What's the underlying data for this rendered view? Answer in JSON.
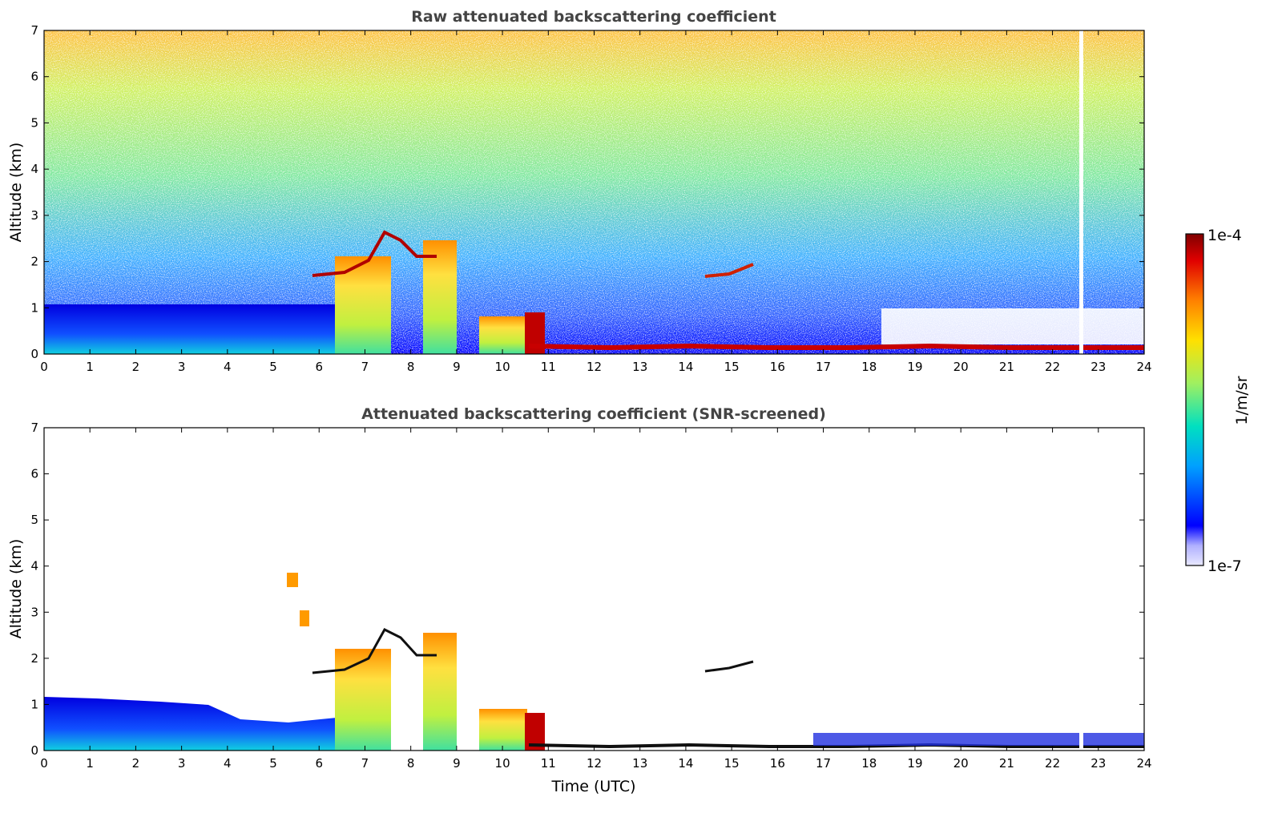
{
  "chart_data": [
    {
      "type": "heatmap",
      "title": "Raw attenuated backscattering coefficient",
      "xlabel": "",
      "ylabel": "Altitude (km)",
      "xlim": [
        0,
        24
      ],
      "ylim": [
        0,
        7
      ],
      "x_ticks": [
        "0",
        "1",
        "2",
        "3",
        "4",
        "5",
        "6",
        "7",
        "8",
        "9",
        "10",
        "11",
        "12",
        "13",
        "14",
        "15",
        "16",
        "17",
        "18",
        "19",
        "20",
        "21",
        "22",
        "23",
        "24"
      ],
      "y_ticks": [
        "0",
        "1",
        "2",
        "3",
        "4",
        "5",
        "6",
        "7"
      ],
      "grid": false
    },
    {
      "type": "heatmap",
      "title": "Attenuated backscattering coefficient (SNR-screened)",
      "xlabel": "Time (UTC)",
      "ylabel": "Altitude (km)",
      "xlim": [
        0,
        24
      ],
      "ylim": [
        0,
        7
      ],
      "x_ticks": [
        "0",
        "1",
        "2",
        "3",
        "4",
        "5",
        "6",
        "7",
        "8",
        "9",
        "10",
        "11",
        "12",
        "13",
        "14",
        "15",
        "16",
        "17",
        "18",
        "19",
        "20",
        "21",
        "22",
        "23",
        "24"
      ],
      "y_ticks": [
        "0",
        "1",
        "2",
        "3",
        "4",
        "5",
        "6",
        "7"
      ],
      "grid": false
    }
  ],
  "colorbar": {
    "label": "1/m/sr",
    "min_label": "1e-7",
    "max_label": "1e-4",
    "scale": "log",
    "colormap": [
      "#e8e8ff",
      "#0000ff",
      "#00a0ff",
      "#00e0c0",
      "#a0f060",
      "#ffe000",
      "#ff8000",
      "#e00000",
      "#800000"
    ]
  }
}
